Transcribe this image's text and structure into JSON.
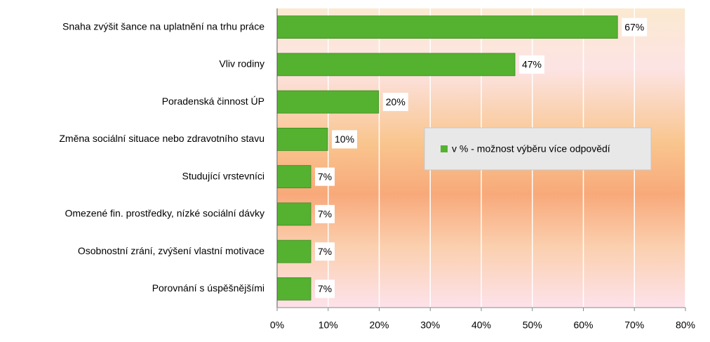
{
  "chart_data": {
    "type": "hbar",
    "categories": [
      "Snaha zvýšit šance na uplatnění na trhu práce",
      "Vliv rodiny",
      "Poradenská činnost ÚP",
      "Změna sociální situace nebo zdravotního stavu",
      "Studující vrstevníci",
      "Omezené fin. prostředky, nízké sociální dávky",
      "Osobnostní zrání, zvýšení vlastní motivace",
      "Porovnání s úspěšnějšími"
    ],
    "series": [
      {
        "name": "v % - možnost výběru více odpovědí",
        "color": "#55b130",
        "values": [
          66.7,
          46.6,
          19.9,
          9.9,
          6.6,
          6.6,
          6.6,
          6.6
        ],
        "value_labels": [
          "67%",
          "47%",
          "20%",
          "10%",
          "7%",
          "7%",
          "7%",
          "7%"
        ]
      }
    ],
    "xlim": [
      0,
      80
    ],
    "xticks": [
      {
        "value": 0,
        "label": "0%"
      },
      {
        "value": 10,
        "label": "10%"
      },
      {
        "value": 20,
        "label": "20%"
      },
      {
        "value": 30,
        "label": "30%"
      },
      {
        "value": 40,
        "label": "40%"
      },
      {
        "value": 50,
        "label": "50%"
      },
      {
        "value": 60,
        "label": "60%"
      },
      {
        "value": 70,
        "label": "70%"
      },
      {
        "value": 80,
        "label": "80%"
      }
    ],
    "grid": true,
    "legend": "right"
  }
}
